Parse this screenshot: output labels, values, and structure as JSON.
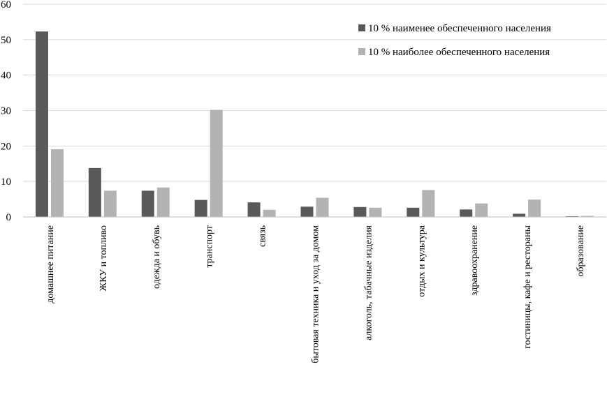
{
  "chart_data": {
    "type": "bar",
    "title": "",
    "xlabel": "",
    "ylabel": "",
    "ylim": [
      0,
      60
    ],
    "yticks": [
      0,
      10,
      20,
      30,
      40,
      50,
      60
    ],
    "grid": "horizontal",
    "legend_position": "top-right",
    "categories": [
      "домашнее питание",
      "ЖКУ и топливо",
      "одежда и обувь",
      "транспорт",
      "связь",
      "бытовая техника и уход за домом",
      "алкоголь, табачные изделия",
      "отдых и культура",
      "здравоохранение",
      "гостиницы, кафе и рестораны",
      "образование"
    ],
    "series": [
      {
        "name": "10 % наименее обеспеченного населения",
        "color": "#595959",
        "values": [
          52.3,
          13.8,
          7.4,
          4.8,
          4.1,
          2.9,
          2.8,
          2.6,
          2.1,
          0.9,
          0.2
        ]
      },
      {
        "name": "10 % наиболее обеспеченного населения",
        "color": "#b3b3b3",
        "values": [
          19.1,
          7.4,
          8.3,
          30.2,
          2.0,
          5.4,
          2.6,
          7.6,
          3.8,
          4.9,
          0.3
        ]
      }
    ]
  }
}
